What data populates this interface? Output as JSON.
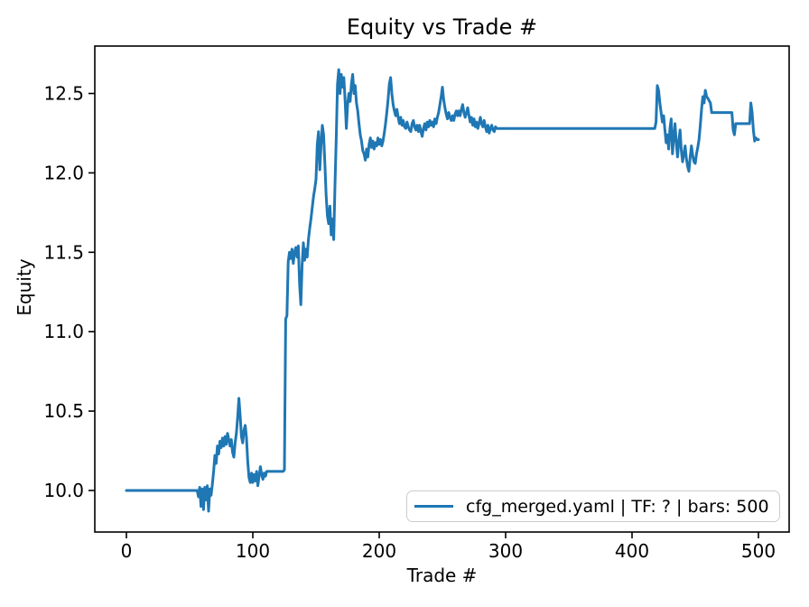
{
  "figure": {
    "title": "Equity vs Trade #",
    "x_axis": {
      "label": "Trade #",
      "tick_labels": [
        "0",
        "100",
        "200",
        "300",
        "400",
        "500"
      ]
    },
    "y_axis": {
      "label": "Equity",
      "tick_labels": [
        "10.0",
        "10.5",
        "11.0",
        "11.5",
        "12.0",
        "12.5"
      ]
    },
    "legend": {
      "label": "cfg_merged.yaml | TF: ? | bars: 500",
      "line_color": "#1f77b4"
    }
  },
  "chart_data": {
    "type": "line",
    "title": "Equity vs Trade #",
    "xlabel": "Trade #",
    "ylabel": "Equity",
    "xlim": [
      -26,
      524
    ],
    "ylim": [
      9.74,
      12.79
    ],
    "x_ticks": [
      0,
      100,
      200,
      300,
      400,
      500
    ],
    "y_ticks": [
      10.0,
      10.5,
      11.0,
      11.5,
      12.0,
      12.5
    ],
    "grid": false,
    "legend_position": "lower right",
    "series": [
      {
        "name": "cfg_merged.yaml | TF: ? | bars: 500",
        "color": "#1f77b4",
        "points": [
          [
            0,
            10
          ],
          [
            56,
            10
          ],
          [
            57,
            9.96
          ],
          [
            58,
            10.02
          ],
          [
            59,
            9.9
          ],
          [
            60,
            10.01
          ],
          [
            61,
            9.88
          ],
          [
            62,
            10.02
          ],
          [
            63,
            9.94
          ],
          [
            64,
            10.03
          ],
          [
            65,
            9.87
          ],
          [
            66,
            10.01
          ],
          [
            67,
            9.97
          ],
          [
            68,
            10.04
          ],
          [
            69,
            10.12
          ],
          [
            70,
            10.22
          ],
          [
            71,
            10.17
          ],
          [
            72,
            10.28
          ],
          [
            73,
            10.23
          ],
          [
            74,
            10.31
          ],
          [
            75,
            10.27
          ],
          [
            76,
            10.33
          ],
          [
            77,
            10.28
          ],
          [
            78,
            10.34
          ],
          [
            79,
            10.29
          ],
          [
            80,
            10.36
          ],
          [
            81,
            10.32
          ],
          [
            82,
            10.28
          ],
          [
            83,
            10.32
          ],
          [
            84,
            10.24
          ],
          [
            85,
            10.21
          ],
          [
            86,
            10.3
          ],
          [
            87,
            10.36
          ],
          [
            88,
            10.46
          ],
          [
            89,
            10.58
          ],
          [
            90,
            10.47
          ],
          [
            91,
            10.34
          ],
          [
            92,
            10.3
          ],
          [
            93,
            10.38
          ],
          [
            94,
            10.41
          ],
          [
            95,
            10.33
          ],
          [
            96,
            10.18
          ],
          [
            97,
            10.08
          ],
          [
            98,
            10.05
          ],
          [
            99,
            10.11
          ],
          [
            100,
            10.05
          ],
          [
            101,
            10.1
          ],
          [
            102,
            10.06
          ],
          [
            103,
            10.12
          ],
          [
            104,
            10.03
          ],
          [
            105,
            10.09
          ],
          [
            106,
            10.15
          ],
          [
            107,
            10.1
          ],
          [
            108,
            10.07
          ],
          [
            109,
            10.11
          ],
          [
            110,
            10.09
          ],
          [
            111,
            10.12
          ],
          [
            124,
            10.12
          ],
          [
            125,
            10.13
          ],
          [
            126,
            11.08
          ],
          [
            127,
            11.1
          ],
          [
            128,
            11.44
          ],
          [
            129,
            11.5
          ],
          [
            130,
            11.46
          ],
          [
            131,
            11.52
          ],
          [
            132,
            11.43
          ],
          [
            133,
            11.5
          ],
          [
            134,
            11.53
          ],
          [
            135,
            11.47
          ],
          [
            136,
            11.54
          ],
          [
            137,
            11.3
          ],
          [
            138,
            11.17
          ],
          [
            139,
            11.42
          ],
          [
            140,
            11.56
          ],
          [
            141,
            11.45
          ],
          [
            142,
            11.52
          ],
          [
            143,
            11.47
          ],
          [
            144,
            11.58
          ],
          [
            145,
            11.65
          ],
          [
            146,
            11.71
          ],
          [
            147,
            11.78
          ],
          [
            148,
            11.85
          ],
          [
            149,
            11.9
          ],
          [
            150,
            11.96
          ],
          [
            151,
            12.18
          ],
          [
            152,
            12.26
          ],
          [
            153,
            12.02
          ],
          [
            154,
            12.18
          ],
          [
            155,
            12.3
          ],
          [
            156,
            12.24
          ],
          [
            157,
            12.06
          ],
          [
            158,
            11.86
          ],
          [
            159,
            11.73
          ],
          [
            160,
            11.68
          ],
          [
            161,
            11.79
          ],
          [
            162,
            11.61
          ],
          [
            163,
            11.71
          ],
          [
            164,
            11.58
          ],
          [
            165,
            11.92
          ],
          [
            166,
            12.22
          ],
          [
            167,
            12.56
          ],
          [
            168,
            12.65
          ],
          [
            169,
            12.5
          ],
          [
            170,
            12.62
          ],
          [
            171,
            12.54
          ],
          [
            172,
            12.6
          ],
          [
            173,
            12.46
          ],
          [
            174,
            12.28
          ],
          [
            175,
            12.43
          ],
          [
            176,
            12.5
          ],
          [
            177,
            12.45
          ],
          [
            178,
            12.56
          ],
          [
            179,
            12.62
          ],
          [
            180,
            12.5
          ],
          [
            181,
            12.55
          ],
          [
            182,
            12.44
          ],
          [
            183,
            12.39
          ],
          [
            184,
            12.31
          ],
          [
            185,
            12.24
          ],
          [
            186,
            12.2
          ],
          [
            187,
            12.14
          ],
          [
            188,
            12.12
          ],
          [
            189,
            12.08
          ],
          [
            190,
            12.15
          ],
          [
            191,
            12.1
          ],
          [
            192,
            12.18
          ],
          [
            193,
            12.22
          ],
          [
            194,
            12.16
          ],
          [
            195,
            12.2
          ],
          [
            196,
            12.15
          ],
          [
            197,
            12.19
          ],
          [
            198,
            12.17
          ],
          [
            199,
            12.22
          ],
          [
            200,
            12.18
          ],
          [
            201,
            12.21
          ],
          [
            202,
            12.17
          ],
          [
            203,
            12.2
          ],
          [
            204,
            12.25
          ],
          [
            205,
            12.31
          ],
          [
            206,
            12.38
          ],
          [
            207,
            12.46
          ],
          [
            208,
            12.56
          ],
          [
            209,
            12.6
          ],
          [
            210,
            12.5
          ],
          [
            211,
            12.43
          ],
          [
            212,
            12.39
          ],
          [
            213,
            12.36
          ],
          [
            214,
            12.4
          ],
          [
            215,
            12.35
          ],
          [
            216,
            12.31
          ],
          [
            217,
            12.35
          ],
          [
            218,
            12.3
          ],
          [
            219,
            12.33
          ],
          [
            220,
            12.29
          ],
          [
            221,
            12.28
          ],
          [
            222,
            12.32
          ],
          [
            223,
            12.29
          ],
          [
            224,
            12.27
          ],
          [
            225,
            12.26
          ],
          [
            226,
            12.31
          ],
          [
            227,
            12.33
          ],
          [
            228,
            12.29
          ],
          [
            229,
            12.27
          ],
          [
            230,
            12.3
          ],
          [
            231,
            12.26
          ],
          [
            232,
            12.3
          ],
          [
            233,
            12.26
          ],
          [
            234,
            12.23
          ],
          [
            235,
            12.28
          ],
          [
            236,
            12.31
          ],
          [
            237,
            12.27
          ],
          [
            238,
            12.32
          ],
          [
            239,
            12.29
          ],
          [
            240,
            12.33
          ],
          [
            241,
            12.3
          ],
          [
            242,
            12.32
          ],
          [
            243,
            12.29
          ],
          [
            244,
            12.34
          ],
          [
            245,
            12.31
          ],
          [
            246,
            12.35
          ],
          [
            247,
            12.38
          ],
          [
            248,
            12.43
          ],
          [
            249,
            12.48
          ],
          [
            250,
            12.54
          ],
          [
            251,
            12.46
          ],
          [
            252,
            12.41
          ],
          [
            253,
            12.37
          ],
          [
            254,
            12.34
          ],
          [
            255,
            12.38
          ],
          [
            256,
            12.35
          ],
          [
            257,
            12.33
          ],
          [
            258,
            12.36
          ],
          [
            259,
            12.33
          ],
          [
            260,
            12.37
          ],
          [
            261,
            12.39
          ],
          [
            262,
            12.36
          ],
          [
            263,
            12.39
          ],
          [
            264,
            12.36
          ],
          [
            265,
            12.4
          ],
          [
            266,
            12.43
          ],
          [
            267,
            12.38
          ],
          [
            268,
            12.35
          ],
          [
            269,
            12.38
          ],
          [
            270,
            12.41
          ],
          [
            271,
            12.36
          ],
          [
            272,
            12.32
          ],
          [
            273,
            12.35
          ],
          [
            274,
            12.3
          ],
          [
            275,
            12.34
          ],
          [
            276,
            12.29
          ],
          [
            277,
            12.32
          ],
          [
            278,
            12.28
          ],
          [
            279,
            12.31
          ],
          [
            280,
            12.35
          ],
          [
            281,
            12.31
          ],
          [
            282,
            12.29
          ],
          [
            283,
            12.33
          ],
          [
            284,
            12.29
          ],
          [
            285,
            12.26
          ],
          [
            286,
            12.3
          ],
          [
            287,
            12.25
          ],
          [
            288,
            12.28
          ],
          [
            289,
            12.3
          ],
          [
            290,
            12.27
          ],
          [
            291,
            12.26
          ],
          [
            292,
            12.29
          ],
          [
            293,
            12.28
          ],
          [
            418,
            12.28
          ],
          [
            419,
            12.32
          ],
          [
            420,
            12.55
          ],
          [
            421,
            12.52
          ],
          [
            422,
            12.44
          ],
          [
            423,
            12.38
          ],
          [
            424,
            12.32
          ],
          [
            425,
            12.36
          ],
          [
            426,
            12.27
          ],
          [
            427,
            12.19
          ],
          [
            428,
            12.24
          ],
          [
            429,
            12.15
          ],
          [
            430,
            12.28
          ],
          [
            431,
            12.34
          ],
          [
            432,
            12.12
          ],
          [
            433,
            12.22
          ],
          [
            434,
            12.31
          ],
          [
            435,
            12.19
          ],
          [
            436,
            12.1
          ],
          [
            437,
            12.2
          ],
          [
            438,
            12.27
          ],
          [
            439,
            12.14
          ],
          [
            440,
            12.07
          ],
          [
            441,
            12.12
          ],
          [
            442,
            12.17
          ],
          [
            443,
            12.09
          ],
          [
            444,
            12.04
          ],
          [
            445,
            12.01
          ],
          [
            446,
            12.1
          ],
          [
            447,
            12.17
          ],
          [
            448,
            12.11
          ],
          [
            449,
            12.07
          ],
          [
            450,
            12.06
          ],
          [
            451,
            12.12
          ],
          [
            452,
            12.16
          ],
          [
            453,
            12.21
          ],
          [
            454,
            12.3
          ],
          [
            455,
            12.4
          ],
          [
            456,
            12.48
          ],
          [
            457,
            12.44
          ],
          [
            458,
            12.52
          ],
          [
            459,
            12.48
          ],
          [
            460,
            12.47
          ],
          [
            462,
            12.44
          ],
          [
            463,
            12.38
          ],
          [
            479,
            12.38
          ],
          [
            480,
            12.27
          ],
          [
            481,
            12.24
          ],
          [
            482,
            12.31
          ],
          [
            493,
            12.31
          ],
          [
            494,
            12.44
          ],
          [
            495,
            12.38
          ],
          [
            496,
            12.27
          ],
          [
            497,
            12.2
          ],
          [
            498,
            12.22
          ],
          [
            499,
            12.21
          ],
          [
            500,
            12.21
          ]
        ]
      }
    ]
  }
}
